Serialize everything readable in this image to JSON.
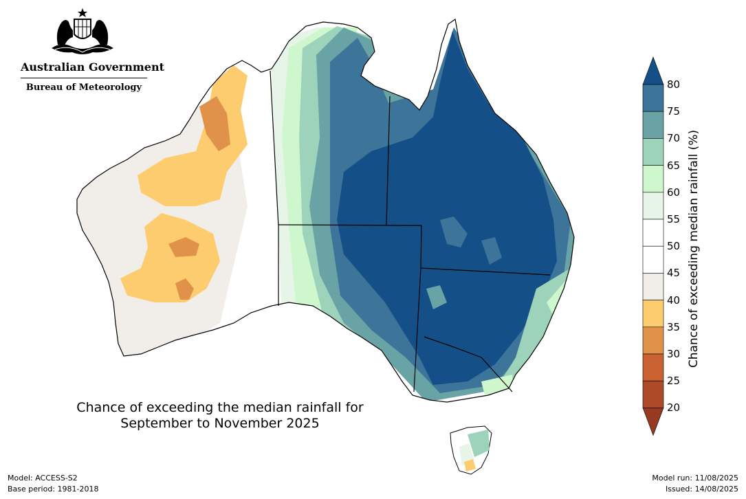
{
  "header": {
    "government": "Australian Government",
    "agency": "Bureau of Meteorology"
  },
  "map": {
    "title_line1": "Chance of exceeding the median rainfall for",
    "title_line2": "September to November 2025",
    "legend": {
      "label": "Chance of exceeding median rainfall (%)",
      "ticks": [
        "80",
        "75",
        "70",
        "65",
        "60",
        "55",
        "50",
        "45",
        "40",
        "35",
        "30",
        "25",
        "20"
      ],
      "bins": [
        {
          "range": ">80",
          "color": "#154f87"
        },
        {
          "range": "75-80",
          "color": "#3d7499"
        },
        {
          "range": "70-75",
          "color": "#6aa3a6"
        },
        {
          "range": "65-70",
          "color": "#9dd3ba"
        },
        {
          "range": "60-65",
          "color": "#cff7cd"
        },
        {
          "range": "55-60",
          "color": "#e7f5e9"
        },
        {
          "range": "50-55",
          "color": "#ffffff"
        },
        {
          "range": "45-50",
          "color": "#ffffff"
        },
        {
          "range": "40-45",
          "color": "#f1ede8"
        },
        {
          "range": "35-40",
          "color": "#fdcc6e"
        },
        {
          "range": "30-35",
          "color": "#e0924a"
        },
        {
          "range": "25-30",
          "color": "#cb6232"
        },
        {
          "range": "20-25",
          "color": "#ad4b28"
        },
        {
          "range": "<20",
          "color": "#963a22"
        }
      ]
    }
  },
  "footer": {
    "model": "Model: ACCESS-S2",
    "base_period": "Base period: 1981-2018",
    "model_run": "Model run: 11/08/2025",
    "issued": "Issued: 14/08/2025"
  }
}
